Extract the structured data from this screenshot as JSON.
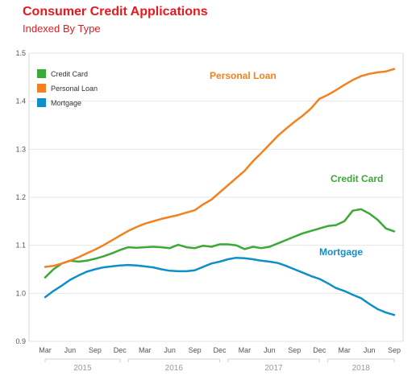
{
  "header": {
    "title": "Consumer Credit Applications",
    "subtitle": "Indexed By Type"
  },
  "chart_data": {
    "type": "line",
    "title": "Consumer Credit Applications",
    "subtitle": "Indexed By Type",
    "xlabel": "",
    "ylabel": "",
    "ylim": [
      0.9,
      1.5
    ],
    "y_ticks": [
      "0.9",
      "1.0",
      "1.1",
      "1.2",
      "1.3",
      "1.4",
      "1.5"
    ],
    "x_tick_labels": [
      "Mar",
      "Jun",
      "Sep",
      "Dec",
      "Mar",
      "Jun",
      "Sep",
      "Dec",
      "Mar",
      "Jun",
      "Sep",
      "Dec",
      "Mar",
      "Jun",
      "Sep"
    ],
    "year_labels": [
      "2015",
      "2016",
      "2017",
      "2018"
    ],
    "grid": true,
    "legend_position": "top-left",
    "x": [
      "2015-03",
      "2015-04",
      "2015-05",
      "2015-06",
      "2015-07",
      "2015-08",
      "2015-09",
      "2015-10",
      "2015-11",
      "2015-12",
      "2016-01",
      "2016-02",
      "2016-03",
      "2016-04",
      "2016-05",
      "2016-06",
      "2016-07",
      "2016-08",
      "2016-09",
      "2016-10",
      "2016-11",
      "2016-12",
      "2017-01",
      "2017-02",
      "2017-03",
      "2017-04",
      "2017-05",
      "2017-06",
      "2017-07",
      "2017-08",
      "2017-09",
      "2017-10",
      "2017-11",
      "2017-12",
      "2018-01",
      "2018-02",
      "2018-03",
      "2018-04",
      "2018-05",
      "2018-06",
      "2018-07",
      "2018-08",
      "2018-09"
    ],
    "series": [
      {
        "name": "Credit Card",
        "color": "#3aa935",
        "values": [
          1.033,
          1.05,
          1.062,
          1.068,
          1.066,
          1.068,
          1.072,
          1.077,
          1.083,
          1.09,
          1.096,
          1.095,
          1.096,
          1.097,
          1.096,
          1.094,
          1.101,
          1.096,
          1.094,
          1.099,
          1.097,
          1.102,
          1.102,
          1.1,
          1.092,
          1.097,
          1.094,
          1.097,
          1.104,
          1.111,
          1.118,
          1.125,
          1.13,
          1.135,
          1.14,
          1.142,
          1.15,
          1.172,
          1.175,
          1.166,
          1.153,
          1.135,
          1.129
        ]
      },
      {
        "name": "Personal Loan",
        "color": "#f4811e",
        "values": [
          1.055,
          1.057,
          1.062,
          1.068,
          1.075,
          1.083,
          1.091,
          1.1,
          1.11,
          1.12,
          1.13,
          1.138,
          1.145,
          1.15,
          1.155,
          1.159,
          1.163,
          1.168,
          1.173,
          1.185,
          1.195,
          1.21,
          1.225,
          1.24,
          1.255,
          1.275,
          1.292,
          1.31,
          1.328,
          1.343,
          1.357,
          1.37,
          1.385,
          1.405,
          1.413,
          1.423,
          1.434,
          1.444,
          1.452,
          1.457,
          1.46,
          1.462,
          1.467
        ]
      },
      {
        "name": "Mortgage",
        "color": "#0f8fc7",
        "values": [
          0.992,
          1.005,
          1.016,
          1.028,
          1.037,
          1.045,
          1.05,
          1.054,
          1.056,
          1.058,
          1.059,
          1.058,
          1.056,
          1.054,
          1.05,
          1.047,
          1.046,
          1.046,
          1.048,
          1.055,
          1.062,
          1.066,
          1.071,
          1.074,
          1.073,
          1.071,
          1.068,
          1.066,
          1.063,
          1.057,
          1.05,
          1.043,
          1.036,
          1.03,
          1.021,
          1.011,
          1.005,
          0.997,
          0.99,
          0.978,
          0.967,
          0.96,
          0.955
        ]
      }
    ],
    "annotations": [
      "Personal Loan",
      "Credit Card",
      "Mortgage"
    ]
  }
}
